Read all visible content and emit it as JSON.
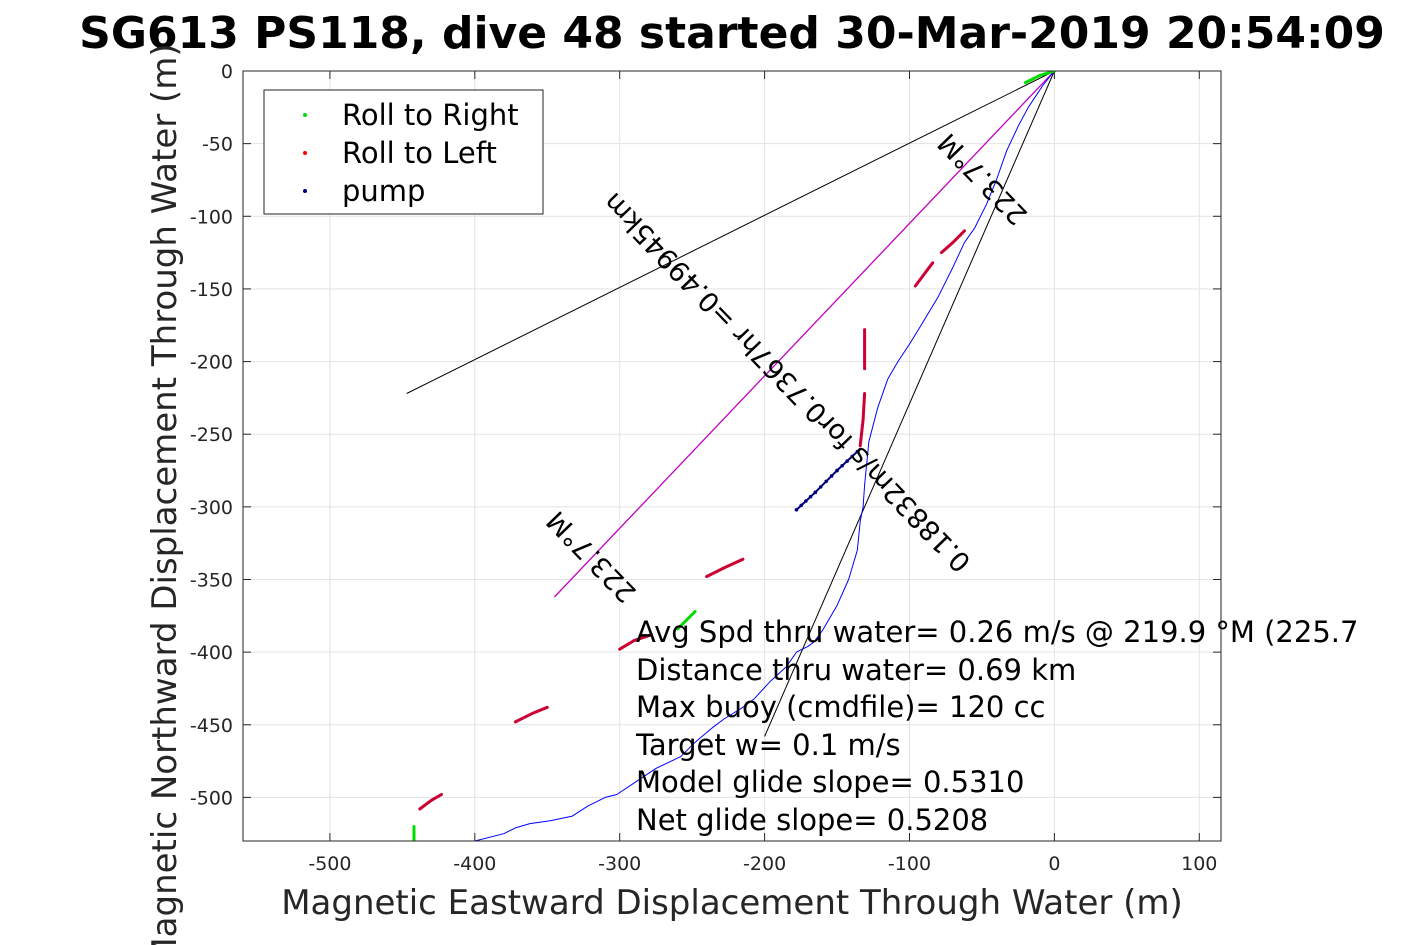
{
  "chart_data": {
    "type": "line",
    "title": "SG613 PS118, dive 48 started 30-Mar-2019 20:54:09",
    "xlabel": "Magnetic Eastward Displacement Through Water (m)",
    "ylabel": "Magnetic Northward Displacement Through Water (m)",
    "xlim": [
      -560,
      115
    ],
    "ylim": [
      -530,
      0
    ],
    "xticks": [
      -500,
      -400,
      -300,
      -200,
      -100,
      0,
      100
    ],
    "yticks": [
      0,
      -50,
      -100,
      -150,
      -200,
      -250,
      -300,
      -350,
      -400,
      -450,
      -500
    ],
    "grid": true,
    "legend": {
      "placement": "top-left",
      "entries": [
        {
          "label": "Roll to Right",
          "color": "#00dd00"
        },
        {
          "label": "Roll to Left",
          "color": "#ff0000"
        },
        {
          "label": "pump",
          "color": "#000080"
        }
      ]
    },
    "colors": {
      "track": "#0000ff",
      "roll_right": "#00dd00",
      "roll_left": "#cc0033",
      "pump": "#000080",
      "average_line": "#cc00cc",
      "bounds": "#000000"
    },
    "track": {
      "x": [
        0,
        -8,
        -18,
        -25,
        -33,
        -40,
        -47,
        -55,
        -62,
        -70,
        -80,
        -92,
        -100,
        -108,
        -115,
        -122,
        -128,
        -131,
        -132,
        -134,
        -136,
        -142,
        -150,
        -160,
        -166,
        -170,
        -178,
        -185,
        -196,
        -207,
        -215,
        -228,
        -236,
        -248,
        -258,
        -275,
        -290,
        -302,
        -310,
        -322,
        -333,
        -348,
        -362,
        -372,
        -380,
        -400,
        -421,
        -428,
        -438,
        -443,
        -444
      ],
      "y": [
        0,
        -10,
        -25,
        -38,
        -55,
        -75,
        -92,
        -108,
        -118,
        -135,
        -155,
        -175,
        -188,
        -200,
        -212,
        -232,
        -255,
        -285,
        -300,
        -310,
        -330,
        -350,
        -368,
        -385,
        -393,
        -396,
        -400,
        -410,
        -420,
        -432,
        -438,
        -446,
        -452,
        -462,
        -472,
        -480,
        -490,
        -498,
        -500,
        -506,
        -513,
        -516,
        -518,
        -521,
        -525,
        -530,
        -535,
        -537,
        -540,
        -545,
        -555
      ]
    },
    "segments": [
      {
        "kind": "roll_right",
        "x": [
          -20,
          -10,
          0
        ],
        "y": [
          -8,
          -3,
          0
        ]
      },
      {
        "kind": "roll_left",
        "x": [
          -62,
          -70,
          -78
        ],
        "y": [
          -110,
          -118,
          -125
        ]
      },
      {
        "kind": "roll_left",
        "x": [
          -84,
          -90,
          -96
        ],
        "y": [
          -132,
          -140,
          -148
        ]
      },
      {
        "kind": "roll_left",
        "x": [
          -131,
          -131,
          -131
        ],
        "y": [
          -178,
          -190,
          -205
        ]
      },
      {
        "kind": "roll_left",
        "x": [
          -131,
          -132,
          -134
        ],
        "y": [
          -222,
          -240,
          -258
        ]
      },
      {
        "kind": "pump",
        "x": [
          -136,
          -150,
          -165,
          -178
        ],
        "y": [
          -262,
          -275,
          -290,
          -302
        ]
      },
      {
        "kind": "roll_left",
        "x": [
          -215,
          -228,
          -240
        ],
        "y": [
          -336,
          -342,
          -348
        ]
      },
      {
        "kind": "roll_right",
        "x": [
          -248,
          -254,
          -260
        ],
        "y": [
          -372,
          -378,
          -384
        ]
      },
      {
        "kind": "roll_left",
        "x": [
          -278,
          -290,
          -300
        ],
        "y": [
          -388,
          -392,
          -398
        ]
      },
      {
        "kind": "roll_left",
        "x": [
          -350,
          -360,
          -372
        ],
        "y": [
          -438,
          -442,
          -448
        ]
      },
      {
        "kind": "roll_left",
        "x": [
          -423,
          -430,
          -438
        ],
        "y": [
          -498,
          -502,
          -508
        ]
      },
      {
        "kind": "roll_right",
        "x": [
          -442,
          -442,
          -442
        ],
        "y": [
          -520,
          -530,
          -540
        ]
      }
    ],
    "average_line": {
      "x": [
        0,
        -345
      ],
      "y": [
        0,
        -362
      ]
    },
    "bound_lines": [
      {
        "x": [
          0,
          -447
        ],
        "y": [
          0,
          -222
        ]
      },
      {
        "x": [
          0,
          -200
        ],
        "y": [
          0,
          -458
        ]
      }
    ],
    "diagonal_labels": [
      {
        "text": "223.7°M",
        "x": -45,
        "y": -70,
        "rotation": 46
      },
      {
        "text": "0.18832m/s for0.7367hr =0.49945km",
        "x": -180,
        "y": -210,
        "rotation": 46
      },
      {
        "text": "223.7°M",
        "x": -315,
        "y": -330,
        "rotation": 46
      }
    ],
    "annotations": [
      "Avg Spd thru water=  0.26 m/s @ 219.9 °M (225.7",
      "Distance thru water=  0.69 km",
      "Max buoy (cmdfile)= 120 cc",
      "Target w= 0.1 m/s",
      "Model glide slope= 0.5310",
      "Net glide slope= 0.5208"
    ]
  }
}
